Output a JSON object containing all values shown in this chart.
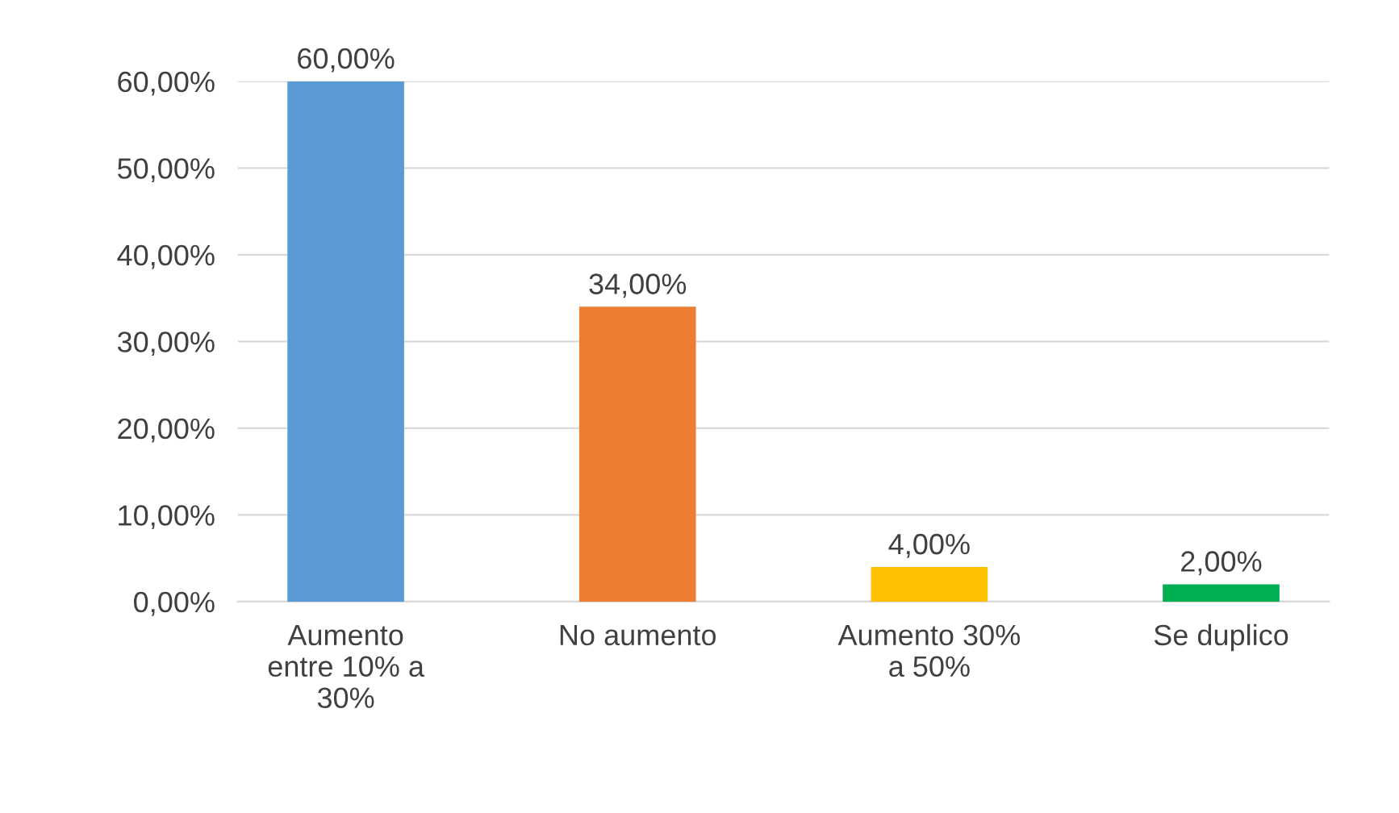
{
  "chart_data": {
    "type": "bar",
    "categories": [
      "Aumento\nentre 10% a\n30%",
      "No aumento",
      "Aumento 30%\na 50%",
      "Se duplico"
    ],
    "values": [
      60,
      34,
      4,
      2
    ],
    "colors": [
      "#5b9bd5",
      "#ed7d31",
      "#ffc000",
      "#00b050"
    ],
    "value_labels": [
      "60,00%",
      "34,00%",
      "4,00%",
      "2,00%"
    ],
    "ylim": [
      0,
      60
    ],
    "yticks": [
      {
        "value": 0,
        "label": "0,00%"
      },
      {
        "value": 10,
        "label": "10,00%"
      },
      {
        "value": 20,
        "label": "20,00%"
      },
      {
        "value": 30,
        "label": "30,00%"
      },
      {
        "value": 40,
        "label": "40,00%"
      },
      {
        "value": 50,
        "label": "50,00%"
      },
      {
        "value": 60,
        "label": "60,00%"
      }
    ],
    "grid": "y"
  }
}
